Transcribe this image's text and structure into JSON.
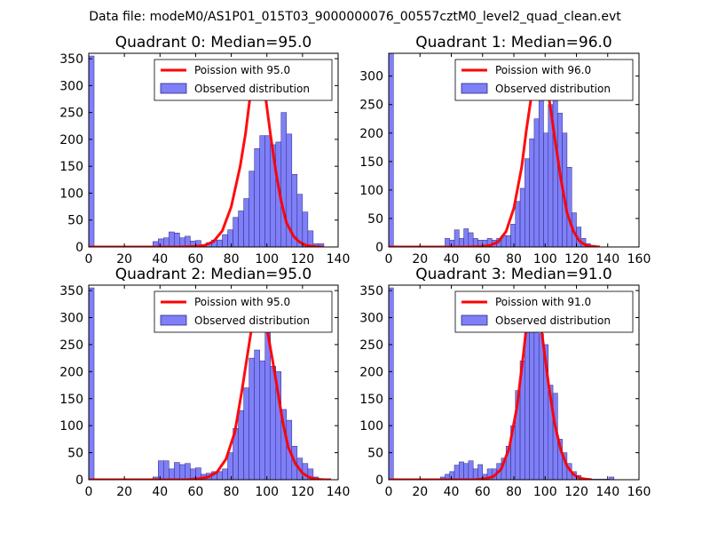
{
  "figure": {
    "title": "Data file: modeM0/AS1P01_015T03_9000000076_00557cztM0_level2_quad_clean.evt"
  },
  "colors": {
    "bar_fill": "#7f7ff8",
    "bar_edge": "#2a2a7a",
    "curve": "#ff0000",
    "axes": "#000000"
  },
  "chart_data": [
    {
      "type": "bar",
      "title": "Quadrant 0: Median=95.0",
      "xlim": [
        0,
        140
      ],
      "ylim": [
        0,
        360
      ],
      "xticks": [
        0,
        20,
        40,
        60,
        80,
        100,
        120,
        140
      ],
      "yticks": [
        0,
        50,
        100,
        150,
        200,
        250,
        300,
        350
      ],
      "bin_width": 3,
      "bins": [
        [
          0,
          355
        ],
        [
          3,
          2
        ],
        [
          6,
          1
        ],
        [
          9,
          1
        ],
        [
          12,
          1
        ],
        [
          15,
          1
        ],
        [
          18,
          1
        ],
        [
          21,
          1
        ],
        [
          24,
          1
        ],
        [
          27,
          1
        ],
        [
          30,
          0
        ],
        [
          33,
          1
        ],
        [
          36,
          10
        ],
        [
          39,
          15
        ],
        [
          42,
          17
        ],
        [
          45,
          28
        ],
        [
          48,
          26
        ],
        [
          51,
          17
        ],
        [
          54,
          20
        ],
        [
          57,
          11
        ],
        [
          60,
          12
        ],
        [
          63,
          4
        ],
        [
          66,
          8
        ],
        [
          69,
          13
        ],
        [
          72,
          13
        ],
        [
          75,
          23
        ],
        [
          78,
          32
        ],
        [
          81,
          55
        ],
        [
          84,
          67
        ],
        [
          87,
          90
        ],
        [
          90,
          141
        ],
        [
          93,
          183
        ],
        [
          96,
          207
        ],
        [
          99,
          207
        ],
        [
          102,
          190
        ],
        [
          105,
          195
        ],
        [
          108,
          250
        ],
        [
          111,
          210
        ],
        [
          114,
          135
        ],
        [
          117,
          98
        ],
        [
          120,
          65
        ],
        [
          123,
          30
        ],
        [
          126,
          6
        ],
        [
          129,
          6
        ]
      ],
      "curve_label": "Poission with 95.0",
      "curve": [
        [
          0,
          0
        ],
        [
          50,
          0
        ],
        [
          60,
          1
        ],
        [
          65,
          3
        ],
        [
          70,
          10
        ],
        [
          75,
          30
        ],
        [
          80,
          75
        ],
        [
          85,
          150
        ],
        [
          88,
          210
        ],
        [
          91,
          290
        ],
        [
          94,
          338
        ],
        [
          96,
          330
        ],
        [
          99,
          285
        ],
        [
          102,
          210
        ],
        [
          105,
          140
        ],
        [
          108,
          85
        ],
        [
          111,
          45
        ],
        [
          115,
          20
        ],
        [
          118,
          10
        ],
        [
          122,
          3
        ],
        [
          126,
          1
        ],
        [
          130,
          0
        ],
        [
          132,
          0
        ]
      ],
      "legend": [
        "Poission with 95.0",
        "Observed distribution"
      ]
    },
    {
      "type": "bar",
      "title": "Quadrant 1: Median=96.0",
      "xlim": [
        0,
        160
      ],
      "ylim": [
        0,
        340
      ],
      "xticks": [
        0,
        20,
        40,
        60,
        80,
        100,
        120,
        140,
        160
      ],
      "yticks": [
        0,
        50,
        100,
        150,
        200,
        250,
        300
      ],
      "bin_width": 3,
      "bins": [
        [
          0,
          340
        ],
        [
          3,
          2
        ],
        [
          6,
          1
        ],
        [
          9,
          1
        ],
        [
          12,
          1
        ],
        [
          15,
          1
        ],
        [
          18,
          1
        ],
        [
          21,
          1
        ],
        [
          24,
          1
        ],
        [
          27,
          1
        ],
        [
          30,
          1
        ],
        [
          33,
          1
        ],
        [
          36,
          15
        ],
        [
          39,
          12
        ],
        [
          42,
          30
        ],
        [
          45,
          15
        ],
        [
          48,
          32
        ],
        [
          51,
          25
        ],
        [
          54,
          15
        ],
        [
          57,
          12
        ],
        [
          60,
          12
        ],
        [
          63,
          15
        ],
        [
          66,
          12
        ],
        [
          69,
          15
        ],
        [
          72,
          20
        ],
        [
          75,
          20
        ],
        [
          78,
          40
        ],
        [
          81,
          80
        ],
        [
          84,
          103
        ],
        [
          87,
          155
        ],
        [
          90,
          190
        ],
        [
          93,
          225
        ],
        [
          96,
          300
        ],
        [
          99,
          200
        ],
        [
          102,
          250
        ],
        [
          105,
          270
        ],
        [
          108,
          235
        ],
        [
          111,
          200
        ],
        [
          114,
          140
        ],
        [
          117,
          60
        ],
        [
          120,
          35
        ],
        [
          123,
          15
        ],
        [
          126,
          6
        ],
        [
          129,
          3
        ]
      ],
      "curve_label": "Poission with 96.0",
      "curve": [
        [
          0,
          0
        ],
        [
          50,
          0
        ],
        [
          60,
          1
        ],
        [
          65,
          3
        ],
        [
          70,
          9
        ],
        [
          75,
          27
        ],
        [
          80,
          68
        ],
        [
          85,
          140
        ],
        [
          88,
          205
        ],
        [
          92,
          280
        ],
        [
          96,
          323
        ],
        [
          98,
          318
        ],
        [
          102,
          270
        ],
        [
          106,
          195
        ],
        [
          110,
          120
        ],
        [
          114,
          60
        ],
        [
          118,
          28
        ],
        [
          122,
          10
        ],
        [
          126,
          3
        ],
        [
          130,
          1
        ],
        [
          135,
          0
        ]
      ],
      "legend": [
        "Poission with 96.0",
        "Observed distribution"
      ]
    },
    {
      "type": "bar",
      "title": "Quadrant 2: Median=95.0",
      "xlim": [
        0,
        140
      ],
      "ylim": [
        0,
        360
      ],
      "xticks": [
        0,
        20,
        40,
        60,
        80,
        100,
        120,
        140
      ],
      "yticks": [
        0,
        50,
        100,
        150,
        200,
        250,
        300,
        350
      ],
      "bin_width": 3,
      "bins": [
        [
          0,
          355
        ],
        [
          3,
          2
        ],
        [
          6,
          1
        ],
        [
          9,
          1
        ],
        [
          12,
          1
        ],
        [
          15,
          1
        ],
        [
          18,
          1
        ],
        [
          21,
          1
        ],
        [
          24,
          1
        ],
        [
          27,
          1
        ],
        [
          30,
          1
        ],
        [
          33,
          1
        ],
        [
          36,
          5
        ],
        [
          39,
          35
        ],
        [
          42,
          35
        ],
        [
          45,
          20
        ],
        [
          48,
          32
        ],
        [
          51,
          28
        ],
        [
          54,
          30
        ],
        [
          57,
          20
        ],
        [
          60,
          22
        ],
        [
          63,
          10
        ],
        [
          66,
          12
        ],
        [
          69,
          15
        ],
        [
          72,
          15
        ],
        [
          75,
          20
        ],
        [
          78,
          50
        ],
        [
          81,
          95
        ],
        [
          84,
          128
        ],
        [
          87,
          170
        ],
        [
          90,
          225
        ],
        [
          93,
          240
        ],
        [
          96,
          220
        ],
        [
          99,
          275
        ],
        [
          102,
          210
        ],
        [
          105,
          200
        ],
        [
          108,
          130
        ],
        [
          111,
          110
        ],
        [
          114,
          62
        ],
        [
          117,
          40
        ],
        [
          120,
          30
        ],
        [
          123,
          20
        ],
        [
          126,
          5
        ]
      ],
      "curve_label": "Poission with 95.0",
      "curve": [
        [
          0,
          0
        ],
        [
          55,
          0
        ],
        [
          62,
          2
        ],
        [
          67,
          5
        ],
        [
          72,
          14
        ],
        [
          77,
          38
        ],
        [
          82,
          88
        ],
        [
          86,
          165
        ],
        [
          90,
          250
        ],
        [
          94,
          335
        ],
        [
          96,
          338
        ],
        [
          99,
          300
        ],
        [
          103,
          225
        ],
        [
          106,
          165
        ],
        [
          109,
          105
        ],
        [
          112,
          60
        ],
        [
          116,
          30
        ],
        [
          120,
          12
        ],
        [
          124,
          4
        ],
        [
          128,
          1
        ],
        [
          132,
          0
        ],
        [
          136,
          0
        ]
      ],
      "legend": [
        "Poission with 95.0",
        "Observed distribution"
      ]
    },
    {
      "type": "bar",
      "title": "Quadrant 3: Median=91.0",
      "xlim": [
        0,
        160
      ],
      "ylim": [
        0,
        360
      ],
      "xticks": [
        0,
        20,
        40,
        60,
        80,
        100,
        120,
        140,
        160
      ],
      "yticks": [
        0,
        50,
        100,
        150,
        200,
        250,
        300,
        350
      ],
      "bin_width": 3,
      "bins": [
        [
          0,
          355
        ],
        [
          3,
          2
        ],
        [
          6,
          1
        ],
        [
          9,
          1
        ],
        [
          12,
          1
        ],
        [
          15,
          1
        ],
        [
          18,
          1
        ],
        [
          21,
          1
        ],
        [
          24,
          1
        ],
        [
          27,
          1
        ],
        [
          30,
          1
        ],
        [
          33,
          5
        ],
        [
          36,
          10
        ],
        [
          39,
          15
        ],
        [
          42,
          27
        ],
        [
          45,
          33
        ],
        [
          48,
          30
        ],
        [
          51,
          35
        ],
        [
          54,
          20
        ],
        [
          57,
          28
        ],
        [
          60,
          10
        ],
        [
          63,
          20
        ],
        [
          66,
          20
        ],
        [
          69,
          30
        ],
        [
          72,
          40
        ],
        [
          75,
          62
        ],
        [
          78,
          100
        ],
        [
          81,
          165
        ],
        [
          84,
          220
        ],
        [
          87,
          275
        ],
        [
          90,
          342
        ],
        [
          93,
          340
        ],
        [
          96,
          270
        ],
        [
          99,
          250
        ],
        [
          102,
          175
        ],
        [
          105,
          160
        ],
        [
          108,
          75
        ],
        [
          111,
          50
        ],
        [
          114,
          30
        ],
        [
          117,
          15
        ],
        [
          120,
          8
        ],
        [
          123,
          3
        ],
        [
          126,
          2
        ],
        [
          129,
          1
        ],
        [
          132,
          1
        ],
        [
          135,
          1
        ],
        [
          138,
          1
        ],
        [
          141,
          5
        ]
      ],
      "curve_label": "Poission with 91.0",
      "curve": [
        [
          0,
          0
        ],
        [
          55,
          0
        ],
        [
          62,
          2
        ],
        [
          67,
          6
        ],
        [
          72,
          20
        ],
        [
          77,
          58
        ],
        [
          82,
          135
        ],
        [
          86,
          230
        ],
        [
          89,
          310
        ],
        [
          91,
          340
        ],
        [
          94,
          330
        ],
        [
          98,
          270
        ],
        [
          102,
          180
        ],
        [
          106,
          105
        ],
        [
          110,
          55
        ],
        [
          114,
          25
        ],
        [
          118,
          10
        ],
        [
          122,
          3
        ],
        [
          126,
          1
        ],
        [
          130,
          0
        ]
      ],
      "legend": [
        "Poission with 91.0",
        "Observed distribution"
      ]
    }
  ]
}
